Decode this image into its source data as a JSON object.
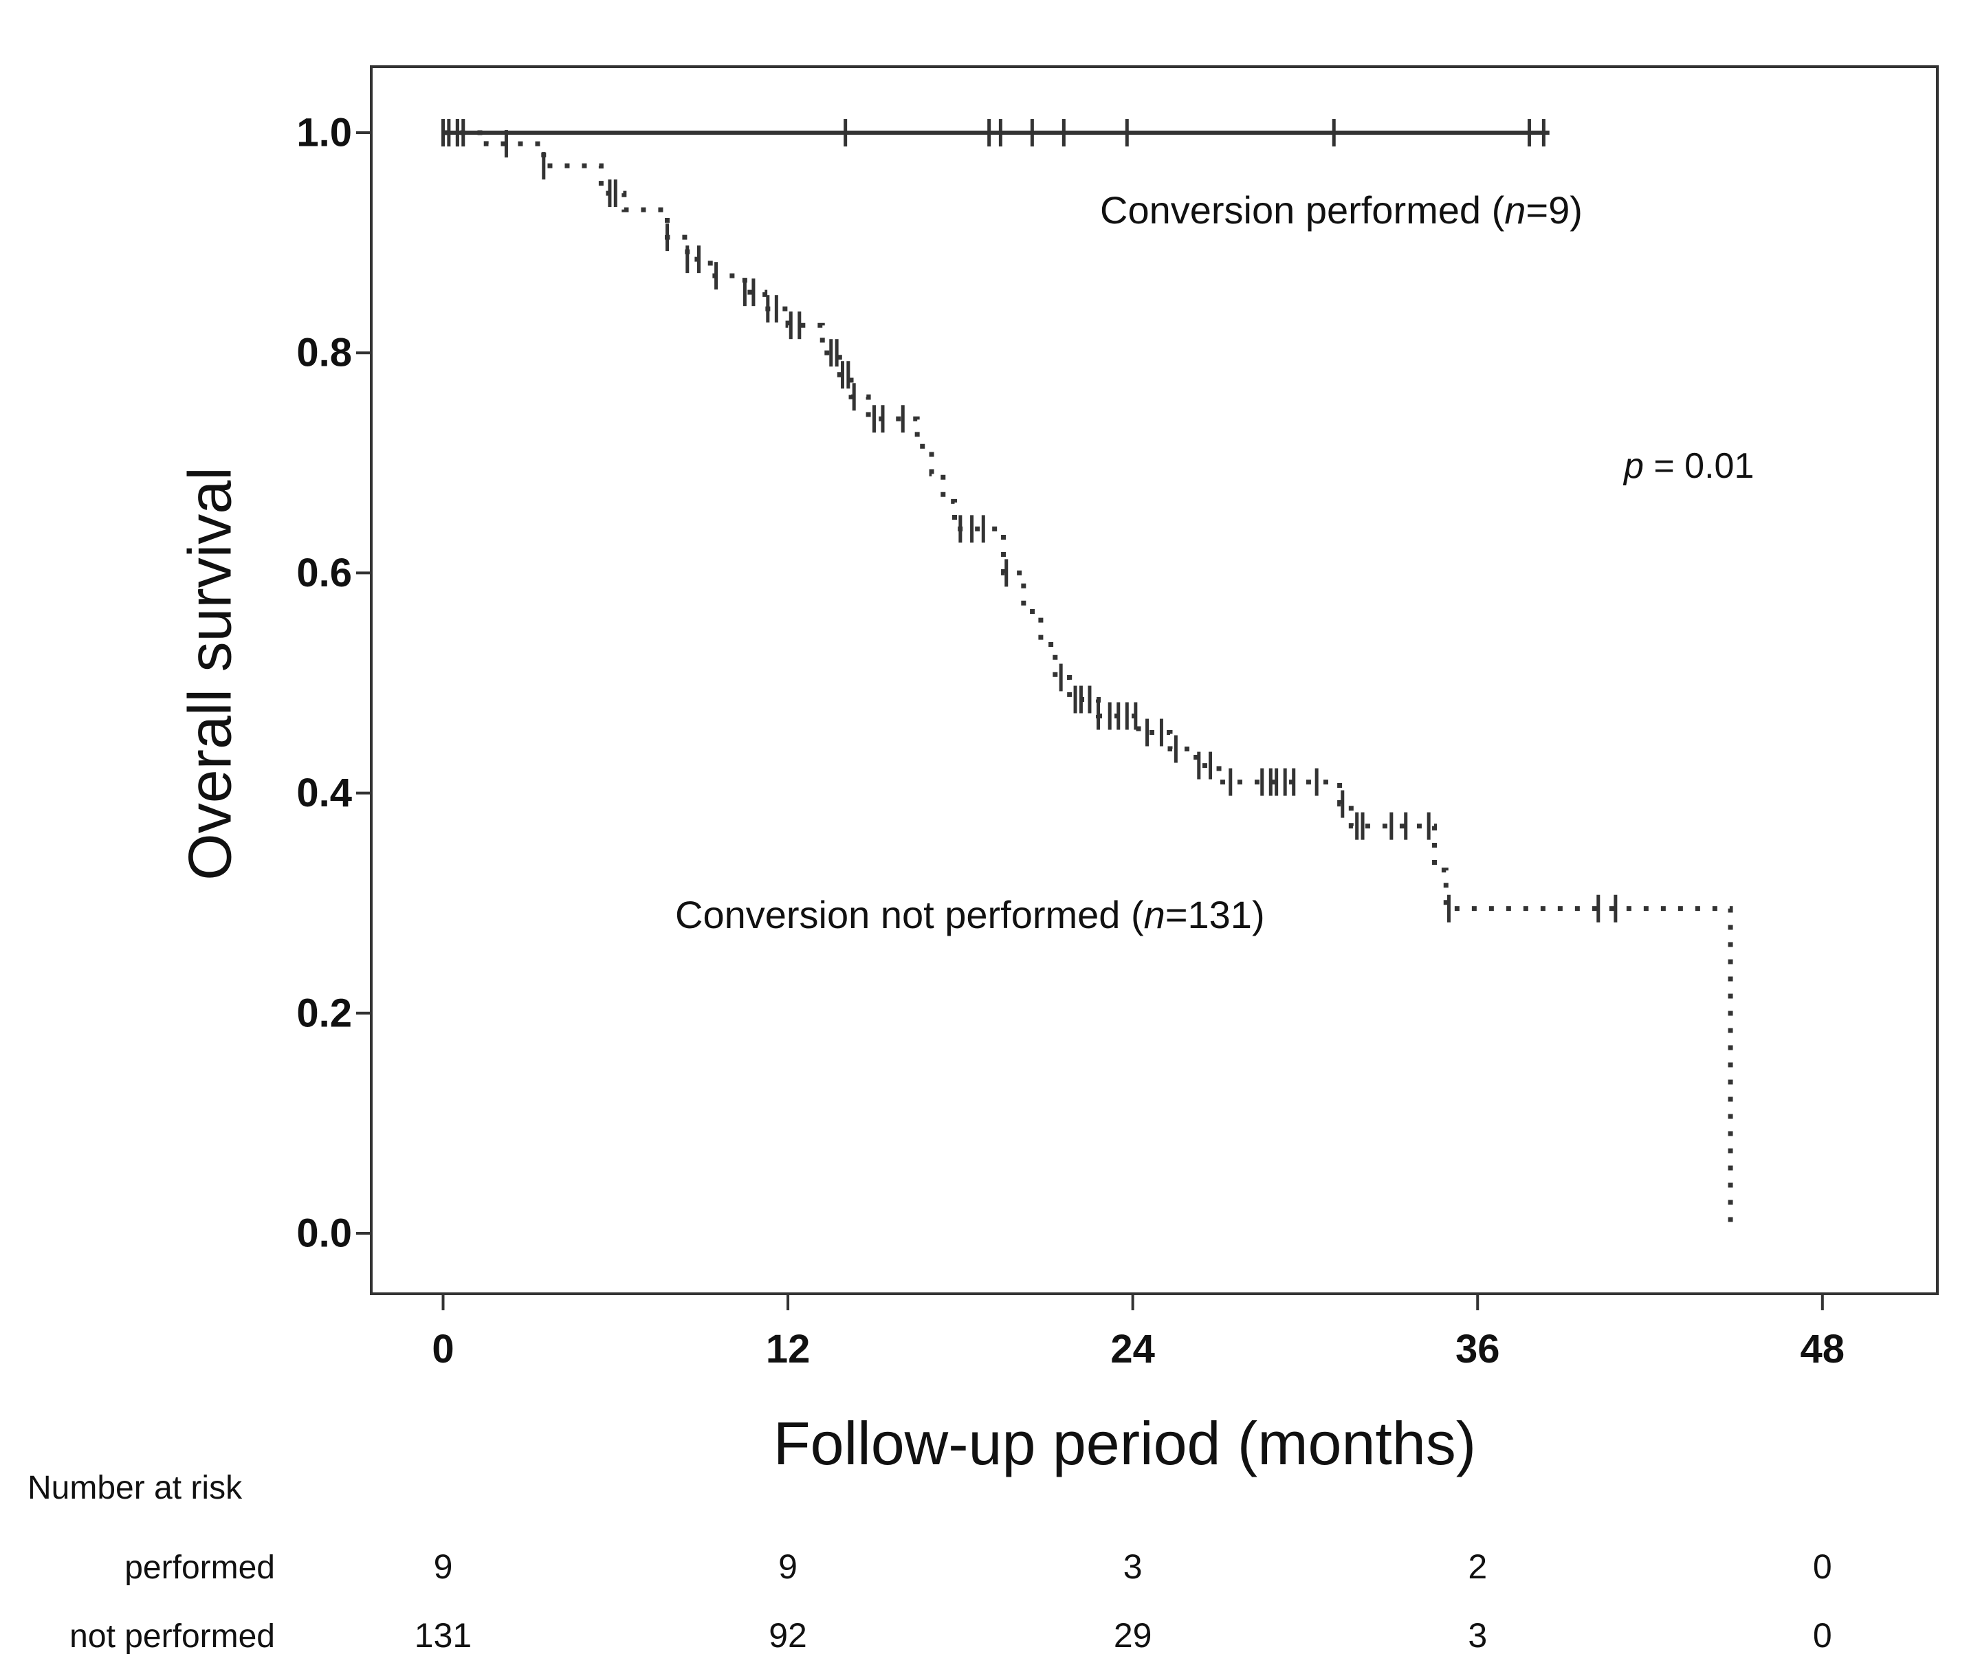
{
  "chart_data": {
    "type": "line",
    "subtype": "kaplan-meier",
    "title": "",
    "xlabel": "Follow-up period (months)",
    "ylabel": "Overall survival",
    "xlim": [
      -2.5,
      52
    ],
    "ylim": [
      -0.055,
      1.06
    ],
    "xticks": [
      0,
      12,
      24,
      36,
      48
    ],
    "xtick_labels": [
      "0",
      "12",
      "24",
      "36",
      "48"
    ],
    "yticks": [
      0.0,
      0.2,
      0.4,
      0.6,
      0.8,
      1.0
    ],
    "ytick_labels": [
      "0.0",
      "0.2",
      "0.4",
      "0.6",
      "0.8",
      "1.0"
    ],
    "grid": false,
    "colors": {
      "line": "#333333",
      "axis": "#333333"
    },
    "series": [
      {
        "name": "performed",
        "style": "solid",
        "steps": [
          [
            0,
            1.0
          ],
          [
            38.5,
            1.0
          ]
        ],
        "censor_times": [
          0,
          0.2,
          0.5,
          0.7,
          14,
          19,
          19.4,
          20.5,
          21.6,
          23.8,
          31,
          37.8,
          38.3
        ]
      },
      {
        "name": "not performed",
        "style": "dotted",
        "steps": [
          [
            0,
            1.0
          ],
          [
            1.5,
            0.99
          ],
          [
            3.5,
            0.97
          ],
          [
            5.5,
            0.945
          ],
          [
            6.3,
            0.93
          ],
          [
            7.8,
            0.905
          ],
          [
            8.5,
            0.885
          ],
          [
            9.3,
            0.87
          ],
          [
            10.5,
            0.855
          ],
          [
            11.2,
            0.84
          ],
          [
            12,
            0.825
          ],
          [
            13.2,
            0.8
          ],
          [
            13.8,
            0.78
          ],
          [
            14.2,
            0.76
          ],
          [
            14.8,
            0.74
          ],
          [
            16.5,
            0.715
          ],
          [
            17,
            0.69
          ],
          [
            17.4,
            0.665
          ],
          [
            17.8,
            0.64
          ],
          [
            19.5,
            0.6
          ],
          [
            20.2,
            0.565
          ],
          [
            20.8,
            0.535
          ],
          [
            21.3,
            0.505
          ],
          [
            21.8,
            0.485
          ],
          [
            22.8,
            0.47
          ],
          [
            24.2,
            0.455
          ],
          [
            25.3,
            0.44
          ],
          [
            26.2,
            0.425
          ],
          [
            27,
            0.41
          ],
          [
            31.2,
            0.39
          ],
          [
            31.6,
            0.37
          ],
          [
            34.5,
            0.33
          ],
          [
            34.9,
            0.295
          ],
          [
            44.8,
            0.295
          ],
          [
            44.8,
            0.0
          ]
        ],
        "censor_times": [
          0.5,
          2.2,
          3.5,
          5.8,
          6,
          7.8,
          8.5,
          8.9,
          9.5,
          10.5,
          10.8,
          11.3,
          11.6,
          12.1,
          12.4,
          13.5,
          13.7,
          13.9,
          14.1,
          14.3,
          15,
          15.3,
          16,
          18,
          18.4,
          18.8,
          19.6,
          21.5,
          22,
          22.2,
          22.5,
          22.8,
          23.2,
          23.5,
          23.8,
          24.1,
          24.5,
          25,
          25.5,
          26.3,
          26.7,
          27.4,
          28.5,
          28.8,
          29,
          29.3,
          29.6,
          30.4,
          31.3,
          31.8,
          32,
          33,
          33.5,
          34.3,
          35,
          40.2,
          40.8
        ]
      }
    ],
    "annotations": {
      "performed_label": {
        "prefix": "Conversion performed (",
        "italic": "n",
        "suffix": "=9)"
      },
      "not_performed_label": {
        "prefix": "Conversion not performed (",
        "italic": "n",
        "suffix": "=131)"
      },
      "p_value": {
        "italic": "p",
        "suffix": " = 0.01"
      }
    },
    "number_at_risk": {
      "heading": "Number at risk",
      "times": [
        0,
        12,
        24,
        36,
        48
      ],
      "rows": [
        {
          "label": "performed",
          "values": [
            "9",
            "9",
            "3",
            "2",
            "0"
          ]
        },
        {
          "label": "not performed",
          "values": [
            "131",
            "92",
            "29",
            "3",
            "0"
          ]
        }
      ]
    }
  }
}
